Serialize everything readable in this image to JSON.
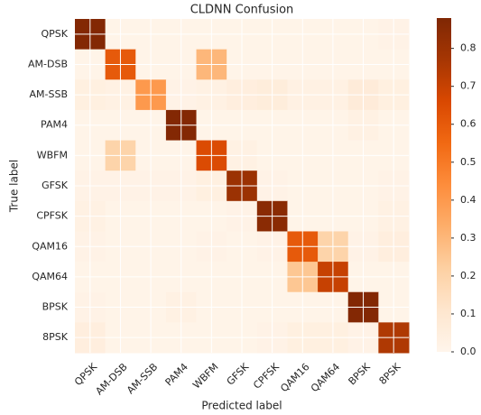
{
  "chart_data": {
    "type": "heatmap",
    "title": "CLDNN Confusion",
    "x_label": "Predicted label",
    "y_label": "True label",
    "colormap": "Oranges",
    "categories": [
      "QPSK",
      "AM-DSB",
      "AM-SSB",
      "PAM4",
      "WBFM",
      "GFSK",
      "CPFSK",
      "QAM16",
      "QAM64",
      "BPSK",
      "8PSK"
    ],
    "values": [
      [
        0.87,
        0.01,
        0.01,
        0.01,
        0.01,
        0.01,
        0.01,
        0.01,
        0.01,
        0.01,
        0.02
      ],
      [
        0.01,
        0.6,
        0.01,
        0.01,
        0.3,
        0.01,
        0.01,
        0.01,
        0.01,
        0.01,
        0.01
      ],
      [
        0.04,
        0.03,
        0.4,
        0.02,
        0.03,
        0.05,
        0.06,
        0.03,
        0.03,
        0.07,
        0.04
      ],
      [
        0.01,
        0.01,
        0.01,
        0.87,
        0.01,
        0.01,
        0.01,
        0.01,
        0.01,
        0.03,
        0.01
      ],
      [
        0.01,
        0.2,
        0.01,
        0.01,
        0.65,
        0.03,
        0.01,
        0.01,
        0.01,
        0.01,
        0.01
      ],
      [
        0.02,
        0.02,
        0.02,
        0.02,
        0.04,
        0.8,
        0.02,
        0.01,
        0.01,
        0.01,
        0.02
      ],
      [
        0.03,
        0.01,
        0.01,
        0.01,
        0.01,
        0.02,
        0.85,
        0.01,
        0.01,
        0.01,
        0.03
      ],
      [
        0.02,
        0.01,
        0.01,
        0.01,
        0.02,
        0.01,
        0.02,
        0.6,
        0.2,
        0.02,
        0.05
      ],
      [
        0.01,
        0.01,
        0.01,
        0.01,
        0.01,
        0.01,
        0.01,
        0.25,
        0.7,
        0.01,
        0.01
      ],
      [
        0.02,
        0.01,
        0.01,
        0.03,
        0.01,
        0.01,
        0.01,
        0.01,
        0.01,
        0.87,
        0.01
      ],
      [
        0.05,
        0.01,
        0.01,
        0.01,
        0.01,
        0.01,
        0.02,
        0.04,
        0.04,
        0.02,
        0.75
      ]
    ],
    "clim": [
      0,
      0.88
    ],
    "cticks": [
      {
        "value": 0,
        "label": "0.0"
      },
      0.1,
      0.2,
      0.3,
      0.4,
      0.5,
      0.6,
      0.7,
      0.8
    ],
    "grid": true
  }
}
